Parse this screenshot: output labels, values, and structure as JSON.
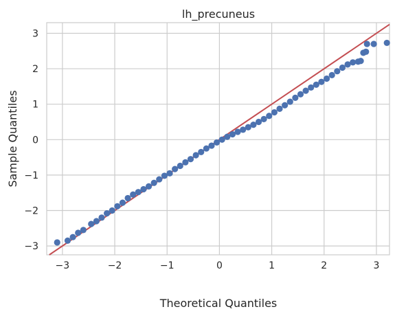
{
  "chart_data": {
    "type": "scatter",
    "title": "lh_precuneus",
    "xlabel": "Theoretical Quantiles",
    "ylabel": "Sample Quantiles",
    "xlim": [
      -3.3,
      3.25
    ],
    "ylim": [
      -3.25,
      3.3
    ],
    "xticks": [
      -3,
      -2,
      -1,
      0,
      1,
      2,
      3
    ],
    "yticks": [
      -3,
      -2,
      -1,
      0,
      1,
      2,
      3
    ],
    "grid": true,
    "reference_line": {
      "slope": 1,
      "intercept": 0,
      "color": "#c44e52"
    },
    "colors": {
      "points": "#4c72b0",
      "line": "#c44e52",
      "grid": "#cccccc",
      "frame": "#cccccc"
    },
    "points": [
      [
        -3.1,
        -2.9
      ],
      [
        -2.9,
        -2.85
      ],
      [
        -2.8,
        -2.75
      ],
      [
        -2.7,
        -2.63
      ],
      [
        -2.6,
        -2.55
      ],
      [
        -2.45,
        -2.38
      ],
      [
        -2.35,
        -2.3
      ],
      [
        -2.25,
        -2.2
      ],
      [
        -2.15,
        -2.08
      ],
      [
        -2.05,
        -2.0
      ],
      [
        -1.95,
        -1.88
      ],
      [
        -1.85,
        -1.78
      ],
      [
        -1.75,
        -1.65
      ],
      [
        -1.65,
        -1.55
      ],
      [
        -1.55,
        -1.48
      ],
      [
        -1.45,
        -1.4
      ],
      [
        -1.35,
        -1.32
      ],
      [
        -1.25,
        -1.22
      ],
      [
        -1.15,
        -1.12
      ],
      [
        -1.05,
        -1.02
      ],
      [
        -0.95,
        -0.95
      ],
      [
        -0.85,
        -0.83
      ],
      [
        -0.75,
        -0.74
      ],
      [
        -0.65,
        -0.64
      ],
      [
        -0.55,
        -0.55
      ],
      [
        -0.45,
        -0.44
      ],
      [
        -0.35,
        -0.35
      ],
      [
        -0.25,
        -0.25
      ],
      [
        -0.15,
        -0.17
      ],
      [
        -0.05,
        -0.08
      ],
      [
        0.05,
        0.0
      ],
      [
        0.15,
        0.08
      ],
      [
        0.25,
        0.15
      ],
      [
        0.35,
        0.22
      ],
      [
        0.45,
        0.28
      ],
      [
        0.55,
        0.35
      ],
      [
        0.65,
        0.42
      ],
      [
        0.75,
        0.5
      ],
      [
        0.85,
        0.58
      ],
      [
        0.95,
        0.67
      ],
      [
        1.05,
        0.77
      ],
      [
        1.15,
        0.87
      ],
      [
        1.25,
        0.97
      ],
      [
        1.35,
        1.07
      ],
      [
        1.45,
        1.18
      ],
      [
        1.55,
        1.28
      ],
      [
        1.65,
        1.38
      ],
      [
        1.75,
        1.47
      ],
      [
        1.85,
        1.55
      ],
      [
        1.95,
        1.63
      ],
      [
        2.05,
        1.72
      ],
      [
        2.15,
        1.82
      ],
      [
        2.25,
        1.93
      ],
      [
        2.35,
        2.03
      ],
      [
        2.45,
        2.12
      ],
      [
        2.55,
        2.18
      ],
      [
        2.65,
        2.2
      ],
      [
        2.7,
        2.22
      ],
      [
        2.75,
        2.45
      ],
      [
        2.8,
        2.48
      ],
      [
        2.82,
        2.7
      ],
      [
        2.95,
        2.7
      ],
      [
        3.2,
        2.73
      ]
    ]
  }
}
